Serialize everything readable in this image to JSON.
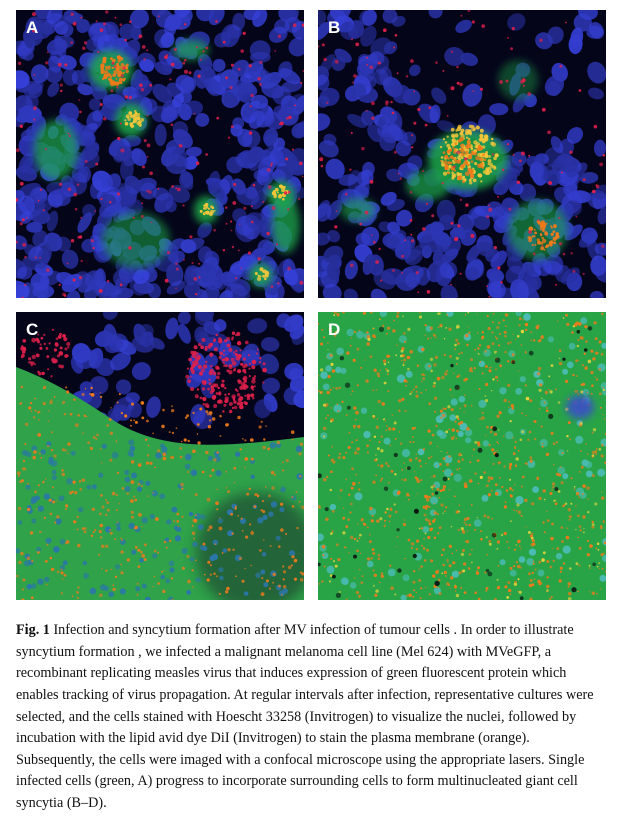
{
  "figure": {
    "panels": [
      {
        "letter": "A",
        "description": "sparse-cells"
      },
      {
        "letter": "B",
        "description": "small-syncytium"
      },
      {
        "letter": "C",
        "description": "large-syncytium"
      },
      {
        "letter": "D",
        "description": "confluent-syncytium"
      }
    ],
    "colors": {
      "nuclei": "#2a3bb8",
      "infected": "#1fa84a",
      "membrane": "#f07a1a",
      "red": "#e0204a",
      "background": "#05051a"
    }
  },
  "caption": {
    "label": "Fig. 1",
    "text": " Infection and syncytium formation after MV infection of tumour cells . In order to illustrate syncytium formation , we infected a malignant melanoma cell line (Mel 624) with MVeGFP, a recombinant replicating measles virus that induces expression of green fluorescent protein which enables tracking of virus propagation. At regular intervals after infection, representative cultures were selected, and the cells stained with Hoescht 33258 (Invitrogen) to visualize the nuclei, followed by incubation with the lipid avid dye DiI (Invitrogen) to stain the plasma membrane (orange). Subsequently, the cells were imaged with a confocal microscope using the appropriate lasers. Single infected cells (green, A) progress to incorporate surrounding cells to form multinucleated giant cell syncytia (B–D)."
  }
}
